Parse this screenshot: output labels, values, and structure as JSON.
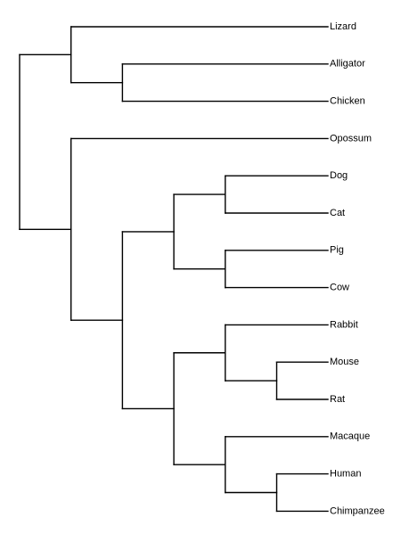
{
  "tree": {
    "children": [
      {
        "children": [
          {
            "label": "Lizard"
          },
          {
            "children": [
              {
                "label": "Alligator"
              },
              {
                "label": "Chicken"
              }
            ]
          }
        ]
      },
      {
        "children": [
          {
            "label": "Opossum"
          },
          {
            "children": [
              {
                "children": [
                  {
                    "children": [
                      {
                        "label": "Dog"
                      },
                      {
                        "label": "Cat"
                      }
                    ]
                  },
                  {
                    "children": [
                      {
                        "label": "Pig"
                      },
                      {
                        "label": "Cow"
                      }
                    ]
                  }
                ]
              },
              {
                "children": [
                  {
                    "children": [
                      {
                        "label": "Rabbit"
                      },
                      {
                        "children": [
                          {
                            "label": "Mouse"
                          },
                          {
                            "label": "Rat"
                          }
                        ]
                      }
                    ]
                  },
                  {
                    "children": [
                      {
                        "label": "Macaque"
                      },
                      {
                        "children": [
                          {
                            "label": "Human"
                          },
                          {
                            "label": "Chimpanzee"
                          }
                        ]
                      }
                    ]
                  }
                ]
              }
            ]
          }
        ]
      }
    ]
  }
}
